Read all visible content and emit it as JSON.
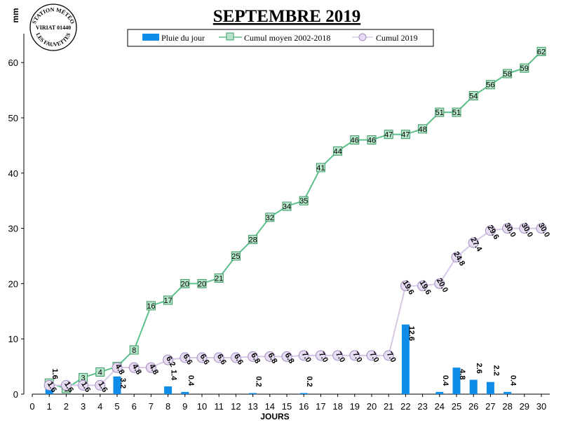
{
  "chart_data": {
    "type": "bar",
    "title": "SEPTEMBRE 2019",
    "ylabel": "mm",
    "xlabel": "JOURS",
    "ylim": [
      0,
      65
    ],
    "xlim": [
      0,
      30
    ],
    "yticks": [
      0,
      10,
      20,
      30,
      40,
      50,
      60
    ],
    "grid": false,
    "legend_position": "top",
    "x": [
      1,
      2,
      3,
      4,
      5,
      6,
      7,
      8,
      9,
      10,
      11,
      12,
      13,
      14,
      15,
      16,
      17,
      18,
      19,
      20,
      21,
      22,
      23,
      24,
      25,
      26,
      27,
      28,
      29,
      30
    ],
    "series": [
      {
        "name": "Pluie du jour",
        "kind": "bar",
        "color": "#0d8ce8",
        "points": [
          {
            "x": 1,
            "y": 1.6,
            "label": "1.6"
          },
          {
            "x": 5,
            "y": 3.2,
            "label": "3.2"
          },
          {
            "x": 8,
            "y": 1.4,
            "label": "1.4"
          },
          {
            "x": 9,
            "y": 0.4,
            "label": "0.4"
          },
          {
            "x": 13,
            "y": 0.2,
            "label": "0.2"
          },
          {
            "x": 16,
            "y": 0.2,
            "label": "0.2"
          },
          {
            "x": 22,
            "y": 12.6,
            "label": "12.6"
          },
          {
            "x": 24,
            "y": 0.4,
            "label": "0.4"
          },
          {
            "x": 25,
            "y": 4.8,
            "label": "4.8"
          },
          {
            "x": 26,
            "y": 2.6,
            "label": "2.6"
          },
          {
            "x": 27,
            "y": 2.2,
            "label": "2.2"
          },
          {
            "x": 28,
            "y": 0.4,
            "label": "0.4"
          }
        ]
      },
      {
        "name": "Cumul moyen 2002-2018",
        "kind": "line",
        "marker": "square",
        "color": "#5cc08a",
        "values": [
          2,
          1,
          3,
          4,
          5,
          8,
          16,
          17,
          20,
          20,
          21,
          25,
          28,
          32,
          34,
          35,
          41,
          44,
          46,
          46,
          47,
          47,
          48,
          51,
          51,
          54,
          56,
          58,
          59,
          62
        ]
      },
      {
        "name": "Cumul 2019",
        "kind": "line",
        "marker": "circle",
        "color": "#d8c8e8",
        "values": [
          1.6,
          1.6,
          1.6,
          1.6,
          4.8,
          4.8,
          4.8,
          6.2,
          6.6,
          6.6,
          6.6,
          6.6,
          6.8,
          6.8,
          6.8,
          7.0,
          7.0,
          7.0,
          7.0,
          7.0,
          7.0,
          19.6,
          19.6,
          20.0,
          24.8,
          27.4,
          29.6,
          30.0,
          30.0,
          30.0
        ],
        "labels": [
          "1.6",
          "1.6",
          "1.6",
          "1.6",
          "4.8",
          "4.8",
          "4.8",
          "6.2",
          "6.6",
          "6.6",
          "6.6",
          "6.6",
          "6.8",
          "6.8",
          "6.8",
          "7.0",
          "7.0",
          "7.0",
          "7.0",
          "7.0",
          "7.0",
          "19.6",
          "19.6",
          "20.0",
          "24.8",
          "27.4",
          "29.6",
          "30.0",
          "30.0",
          "30.0"
        ]
      }
    ]
  },
  "stamp": {
    "line1": "STATION MÉTÉO",
    "line2": "VIRIAT 01440",
    "line3": "LES FAUVETTES"
  }
}
